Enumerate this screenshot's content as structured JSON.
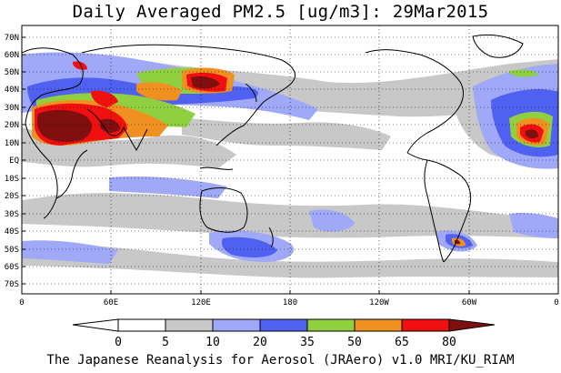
{
  "title": "Daily Averaged PM2.5 [ug/m3]: 29Mar2015",
  "credit": "The Japanese Reanalysis for Aerosol (JRAero) v1.0 MRI/KU_RIAM",
  "lat_labels": [
    "70N",
    "60N",
    "50N",
    "40N",
    "30N",
    "20N",
    "10N",
    "EQ",
    "10S",
    "20S",
    "30S",
    "40S",
    "50S",
    "60S",
    "70S"
  ],
  "lon_labels": [
    "0",
    "60E",
    "120E",
    "180",
    "120W",
    "60W",
    "0"
  ],
  "colorbar": {
    "labels": [
      "0",
      "5",
      "10",
      "20",
      "35",
      "50",
      "65",
      "80"
    ],
    "colors": [
      "#ffffff",
      "#c8c8c8",
      "#a0a8f8",
      "#5060f0",
      "#90d040",
      "#f09020",
      "#f01010",
      "#801010"
    ]
  },
  "chart_data": {
    "type": "map",
    "variable": "Daily Averaged PM2.5",
    "units": "ug/m3",
    "date": "29Mar2015",
    "levels": [
      0,
      5,
      10,
      20,
      35,
      50,
      65,
      80
    ],
    "lat_range": [
      -75,
      75
    ],
    "lon_range": [
      0,
      360
    ],
    "grid": true
  }
}
